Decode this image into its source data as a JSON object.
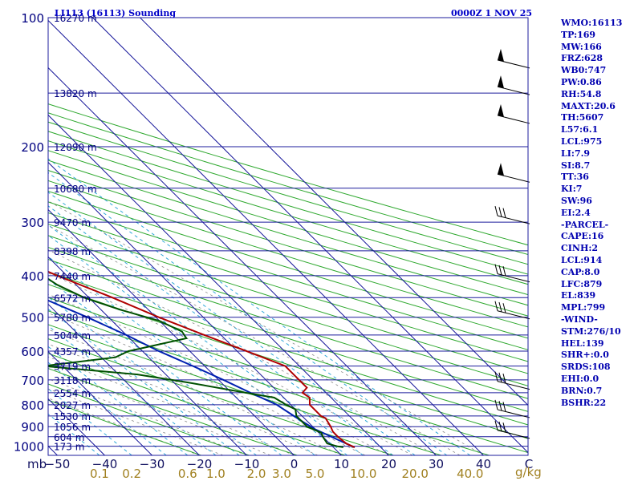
{
  "header": {
    "station": "LI113 (16113) Sounding",
    "datetime": "0000Z  1 NOV 25"
  },
  "indices": [
    "WMO:16113",
    "TP:169",
    "MW:166",
    "FRZ:628",
    "WB0:747",
    "PW:0.86",
    "RH:54.8",
    "MAXT:20.6",
    "TH:5607",
    "L57:6.1",
    "LCL:975",
    "LI:7.9",
    "SI:8.7",
    "TT:36",
    "KI:7",
    "SW:96",
    "EI:2.4",
    "-PARCEL-",
    "CAPE:16",
    "CINH:2",
    "LCL:914",
    "CAP:8.0",
    "LFC:879",
    "EL:839",
    "MPL:799",
    "-WIND-",
    "STM:276/10",
    "HEL:139",
    "SHR+:0.0",
    "SRDS:108",
    "EHI:0.0",
    "BRN:0.7",
    "BSHR:22"
  ],
  "colors": {
    "isobar": "#1c1c9c",
    "skewed_isotherm": "#1c1c9c",
    "dry_adiabat": "#2ea82e",
    "mixing_ratio": "#30a8d8",
    "temperature": "#b00000",
    "dewpoint": "#005000",
    "parcel": "#0020b0",
    "moist_adiabat": "#888888"
  },
  "chart_data": {
    "type": "skew-t log-p",
    "pressure_axis_unit": "mb",
    "pressure_levels": [
      100,
      200,
      300,
      400,
      500,
      600,
      700,
      800,
      900,
      1000
    ],
    "temperature_ticks": [
      -50,
      -40,
      -30,
      -20,
      -10,
      0,
      10,
      20,
      30,
      40
    ],
    "mixing_ratio_unit": "g/kg",
    "mixing_ratio_ticks": [
      "0.1",
      "0.2",
      "0.6",
      "1.0",
      "2.0",
      "3.0",
      "5.0",
      "10.0",
      "20.0",
      "40.0"
    ],
    "height_labels": [
      {
        "p": 100,
        "label": "16270 m"
      },
      {
        "p": 150,
        "label": "13820 m"
      },
      {
        "p": 200,
        "label": "12090 m"
      },
      {
        "p": 250,
        "label": "10680 m"
      },
      {
        "p": 300,
        "label": "9470 m"
      },
      {
        "p": 350,
        "label": "8398 m"
      },
      {
        "p": 400,
        "label": "7440 m"
      },
      {
        "p": 450,
        "label": "6572 m"
      },
      {
        "p": 500,
        "label": "5780 m"
      },
      {
        "p": 550,
        "label": "5044 m"
      },
      {
        "p": 600,
        "label": "4357 m"
      },
      {
        "p": 650,
        "label": "3719 m"
      },
      {
        "p": 700,
        "label": "3118 m"
      },
      {
        "p": 750,
        "label": "2554 m"
      },
      {
        "p": 800,
        "label": "2027 m"
      },
      {
        "p": 850,
        "label": "1530 m"
      },
      {
        "p": 900,
        "label": "1056 m"
      },
      {
        "p": 950,
        "label": "604 m"
      },
      {
        "p": 1000,
        "label": "173 m"
      }
    ],
    "temperature_profile": [
      [
        1005,
        14.4
      ],
      [
        1000,
        14.2
      ],
      [
        985,
        13.5
      ],
      [
        950,
        13.2
      ],
      [
        925,
        13.2
      ],
      [
        900,
        13.8
      ],
      [
        860,
        14.5
      ],
      [
        850,
        14.0
      ],
      [
        800,
        14.0
      ],
      [
        770,
        15.5
      ],
      [
        750,
        15.0
      ],
      [
        730,
        17.0
      ],
      [
        700,
        17.0
      ],
      [
        650,
        17.0
      ],
      [
        600,
        12.0
      ],
      [
        550,
        6.5
      ],
      [
        500,
        0.6
      ],
      [
        450,
        -5.0
      ],
      [
        400,
        -12.0
      ],
      [
        350,
        -19.0
      ],
      [
        300,
        -27.0
      ],
      [
        250,
        -38.0
      ],
      [
        220,
        -46.0
      ],
      [
        200,
        -51.0
      ],
      [
        180,
        -56.0
      ],
      [
        170,
        -58.0
      ],
      [
        160,
        -57.0
      ],
      [
        150,
        -53.0
      ],
      [
        130,
        -51.0
      ],
      [
        115,
        -49.0
      ],
      [
        100,
        -49.0
      ]
    ],
    "dewpoint_profile": [
      [
        1005,
        12.0
      ],
      [
        1000,
        11.0
      ],
      [
        985,
        9.5
      ],
      [
        950,
        10.0
      ],
      [
        930,
        10.5
      ],
      [
        900,
        8.8
      ],
      [
        850,
        8.8
      ],
      [
        820,
        10.0
      ],
      [
        800,
        9.0
      ],
      [
        770,
        8.0
      ],
      [
        750,
        3.0
      ],
      [
        710,
        -7.0
      ],
      [
        680,
        -16.0
      ],
      [
        650,
        -34.0
      ],
      [
        620,
        -17.0
      ],
      [
        600,
        -13.0
      ],
      [
        560,
        2.0
      ],
      [
        540,
        2.5
      ],
      [
        510,
        0.0
      ],
      [
        480,
        -6.0
      ],
      [
        450,
        -11.0
      ],
      [
        420,
        -14.0
      ],
      [
        380,
        -16.0
      ],
      [
        350,
        -15.0
      ],
      [
        320,
        -20.0
      ],
      [
        300,
        -28.0
      ],
      [
        280,
        -30.0
      ],
      [
        270,
        -32.0
      ],
      [
        250,
        -45.0
      ],
      [
        225,
        -50.0
      ],
      [
        200,
        -63.0
      ],
      [
        180,
        -67.0
      ],
      [
        165,
        -75.0
      ],
      [
        150,
        -75.0
      ],
      [
        130,
        -83.0
      ],
      [
        115,
        -85.0
      ],
      [
        100,
        -86.0
      ]
    ],
    "parcel_profile": [
      [
        1005,
        14.4
      ],
      [
        975,
        13.0
      ],
      [
        914,
        10.0
      ],
      [
        879,
        9.0
      ],
      [
        839,
        8.0
      ],
      [
        799,
        7.0
      ],
      [
        750,
        4.0
      ],
      [
        700,
        1.0
      ],
      [
        650,
        -2.5
      ],
      [
        600,
        -6.5
      ],
      [
        550,
        -10.0
      ],
      [
        500,
        -14.5
      ],
      [
        450,
        -20.0
      ],
      [
        400,
        -25.5
      ],
      [
        350,
        -32.5
      ],
      [
        300,
        -40.0
      ],
      [
        250,
        -48.0
      ],
      [
        200,
        -57.0
      ],
      [
        160,
        -63.0
      ],
      [
        130,
        -69.0
      ]
    ],
    "wind_barbs": [
      {
        "p": 130,
        "kind": "pennant"
      },
      {
        "p": 150,
        "kind": "pennant"
      },
      {
        "p": 175,
        "kind": "pennant"
      },
      {
        "p": 240,
        "kind": "pennant"
      },
      {
        "p": 300,
        "kind": "barbs"
      },
      {
        "p": 410,
        "kind": "barbs"
      },
      {
        "p": 500,
        "kind": "barbs"
      },
      {
        "p": 730,
        "kind": "barbs"
      },
      {
        "p": 850,
        "kind": "barbs"
      },
      {
        "p": 950,
        "kind": "barbs"
      }
    ]
  }
}
